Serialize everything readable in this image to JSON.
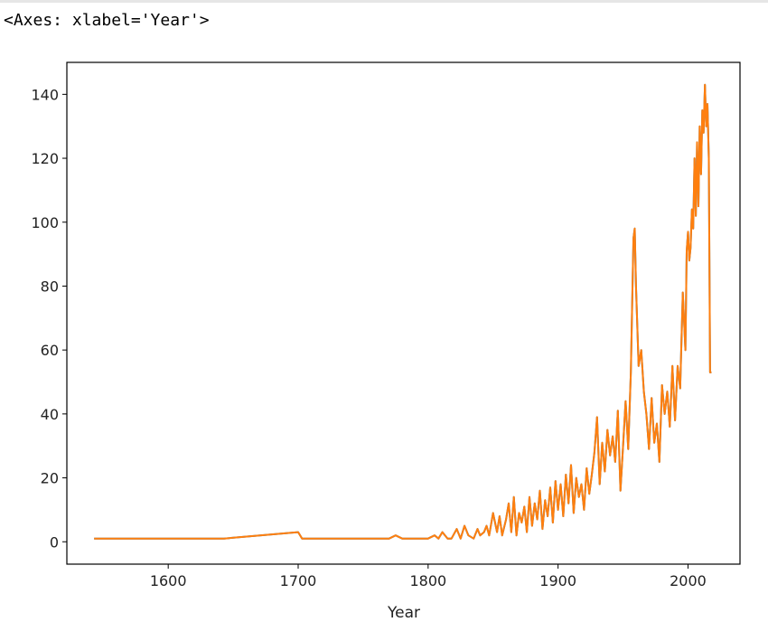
{
  "output_text": "<Axes: xlabel='Year'>",
  "chart_data": {
    "type": "line",
    "xlabel": "Year",
    "ylabel": "",
    "xlim": [
      1522,
      2040
    ],
    "ylim": [
      -7,
      150
    ],
    "x_ticks": [
      1600,
      1700,
      1800,
      1900,
      2000
    ],
    "y_ticks": [
      0,
      20,
      40,
      60,
      80,
      100,
      120,
      140
    ],
    "grid": false,
    "series": [
      {
        "color": "#1f77b4",
        "x": [
          1543,
          1643,
          1700,
          1703,
          1770,
          1775,
          1780,
          1800,
          1805,
          1808,
          1811,
          1815,
          1818,
          1822,
          1825,
          1828,
          1831,
          1835,
          1838,
          1840,
          1843,
          1845,
          1847,
          1850,
          1853,
          1855,
          1857,
          1860,
          1862,
          1864,
          1866,
          1868,
          1870,
          1872,
          1874,
          1876,
          1878,
          1880,
          1882,
          1884,
          1886,
          1888,
          1890,
          1892,
          1894,
          1896,
          1898,
          1900,
          1902,
          1904,
          1906,
          1908,
          1910,
          1912,
          1914,
          1916,
          1918,
          1920,
          1922,
          1924,
          1926,
          1928,
          1930,
          1932,
          1934,
          1936,
          1938,
          1940,
          1942,
          1944,
          1946,
          1948,
          1950,
          1952,
          1954,
          1956,
          1958,
          1959,
          1960,
          1962,
          1964,
          1966,
          1968,
          1970,
          1972,
          1974,
          1976,
          1978,
          1980,
          1982,
          1984,
          1986,
          1988,
          1990,
          1992,
          1994,
          1996,
          1998,
          1999,
          2000,
          2001,
          2002,
          2003,
          2004,
          2005,
          2006,
          2007,
          2008,
          2009,
          2010,
          2011,
          2012,
          2013,
          2014,
          2015,
          2016,
          2017,
          2018
        ],
        "values": [
          1,
          1,
          3,
          1,
          1,
          2,
          1,
          1,
          2,
          1,
          3,
          1,
          1,
          4,
          1,
          5,
          2,
          1,
          4,
          2,
          3,
          5,
          2,
          9,
          3,
          8,
          2,
          7,
          12,
          3,
          14,
          2,
          9,
          6,
          11,
          3,
          14,
          5,
          12,
          7,
          16,
          4,
          13,
          8,
          17,
          6,
          19,
          10,
          18,
          8,
          21,
          12,
          24,
          9,
          20,
          14,
          18,
          10,
          23,
          15,
          21,
          28,
          39,
          18,
          31,
          22,
          35,
          27,
          33,
          25,
          41,
          16,
          30,
          44,
          29,
          53,
          95,
          98,
          80,
          55,
          60,
          47,
          40,
          29,
          45,
          31,
          37,
          25,
          49,
          40,
          47,
          36,
          55,
          38,
          55,
          48,
          78,
          60,
          91,
          97,
          88,
          92,
          104,
          98,
          120,
          102,
          125,
          105,
          130,
          115,
          135,
          128,
          143,
          130,
          137,
          120,
          53,
          53
        ]
      },
      {
        "color": "#ff7f0e",
        "x": [
          1543,
          1643,
          1700,
          1703,
          1770,
          1775,
          1780,
          1800,
          1805,
          1808,
          1811,
          1815,
          1818,
          1822,
          1825,
          1828,
          1831,
          1835,
          1838,
          1840,
          1843,
          1845,
          1847,
          1850,
          1853,
          1855,
          1857,
          1860,
          1862,
          1864,
          1866,
          1868,
          1870,
          1872,
          1874,
          1876,
          1878,
          1880,
          1882,
          1884,
          1886,
          1888,
          1890,
          1892,
          1894,
          1896,
          1898,
          1900,
          1902,
          1904,
          1906,
          1908,
          1910,
          1912,
          1914,
          1916,
          1918,
          1920,
          1922,
          1924,
          1926,
          1928,
          1930,
          1932,
          1934,
          1936,
          1938,
          1940,
          1942,
          1944,
          1946,
          1948,
          1950,
          1952,
          1954,
          1956,
          1958,
          1959,
          1960,
          1962,
          1964,
          1966,
          1968,
          1970,
          1972,
          1974,
          1976,
          1978,
          1980,
          1982,
          1984,
          1986,
          1988,
          1990,
          1992,
          1994,
          1996,
          1998,
          1999,
          2000,
          2001,
          2002,
          2003,
          2004,
          2005,
          2006,
          2007,
          2008,
          2009,
          2010,
          2011,
          2012,
          2013,
          2014,
          2015,
          2016,
          2017,
          2018
        ],
        "values": [
          1,
          1,
          3,
          1,
          1,
          2,
          1,
          1,
          2,
          1,
          3,
          1,
          1,
          4,
          1,
          5,
          2,
          1,
          4,
          2,
          3,
          5,
          2,
          9,
          3,
          8,
          2,
          7,
          12,
          3,
          14,
          2,
          9,
          6,
          11,
          3,
          14,
          5,
          12,
          7,
          16,
          4,
          13,
          8,
          17,
          6,
          19,
          10,
          18,
          8,
          21,
          12,
          24,
          9,
          20,
          14,
          18,
          10,
          23,
          15,
          21,
          28,
          39,
          18,
          31,
          22,
          35,
          27,
          33,
          25,
          41,
          16,
          30,
          44,
          29,
          53,
          95,
          98,
          80,
          55,
          60,
          47,
          40,
          29,
          45,
          31,
          37,
          25,
          49,
          40,
          47,
          36,
          55,
          38,
          55,
          48,
          78,
          60,
          91,
          97,
          88,
          92,
          104,
          98,
          120,
          102,
          125,
          105,
          130,
          115,
          135,
          128,
          143,
          130,
          137,
          120,
          53,
          53
        ]
      }
    ]
  }
}
